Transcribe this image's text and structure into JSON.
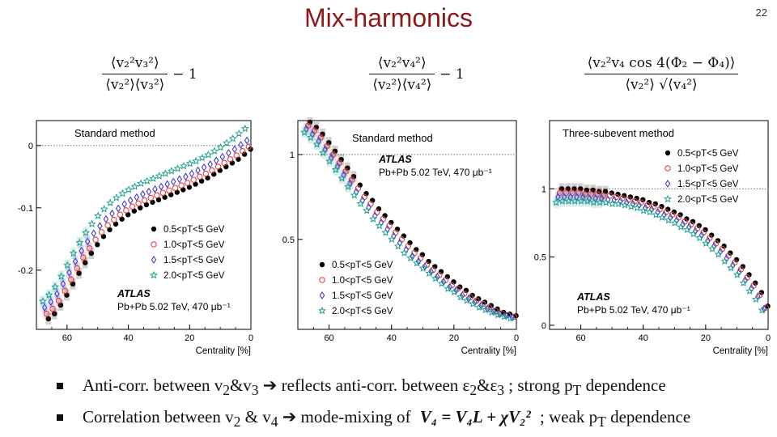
{
  "slide": {
    "title": "Mix-harmonics",
    "page_number": "22"
  },
  "formulas": [
    {
      "numerator": "⟨v₂²v₃²⟩",
      "denominator": "⟨v₂²⟩⟨v₃²⟩",
      "tail": "− 1"
    },
    {
      "numerator": "⟨v₂²v₄²⟩",
      "denominator": "⟨v₂²⟩⟨v₄²⟩",
      "tail": "− 1"
    },
    {
      "numerator": "⟨v₂²v₄ cos 4(Φ₂ − Φ₄)⟩",
      "denominator": "⟨v₂²⟩ √⟨v₄²⟩",
      "tail": ""
    }
  ],
  "bullets": [
    {
      "a": "Anti-corr. between v",
      "s1": "2",
      "b": "&v",
      "s2": "3",
      "c": " ➔ reflects anti-corr. between ε",
      "s3": "2",
      "d": "&ε",
      "s4": "3",
      "e": "  ; strong p",
      "s5": "T",
      "f": " dependence"
    },
    {
      "a": "Correlation between v",
      "s1": "2",
      "b": " & v",
      "s2": "4",
      "c": " ➔ mode-mixing of ",
      "eq": "V₄ = V₄L + χV₂²",
      "e": " ; weak p",
      "s5": "T",
      "f": " dependence"
    }
  ],
  "chart_data": [
    {
      "type": "scatter",
      "method": "Standard method",
      "experiment": "ATLAS",
      "dataset": "Pb+Pb 5.02 TeV, 470 μb⁻¹",
      "xlabel": "Centrality [%]",
      "ylabel": "",
      "xlim": [
        70,
        0
      ],
      "ylim": [
        -0.295,
        0.04
      ],
      "xticks": [
        60,
        40,
        20,
        0
      ],
      "yticks": [
        0,
        -0.1,
        -0.2
      ],
      "yticklabels": [
        "0",
        "-0.1",
        "-0.2"
      ],
      "reference_line": 0,
      "legend_position": "middle-right",
      "x": [
        67,
        65,
        63,
        61,
        59,
        57,
        55,
        53,
        51,
        49,
        47,
        45,
        43,
        41,
        39,
        37,
        35,
        33,
        31,
        29,
        27,
        25,
        23,
        21,
        19,
        17,
        15,
        13,
        11,
        9,
        7,
        5,
        3,
        1
      ],
      "series": [
        {
          "name": "0.5<pT<5 GeV",
          "color": "#000000",
          "marker": "filled-circle",
          "values": [
            -0.278,
            -0.27,
            -0.256,
            -0.24,
            -0.222,
            -0.205,
            -0.188,
            -0.173,
            -0.159,
            -0.146,
            -0.135,
            -0.126,
            -0.118,
            -0.111,
            -0.105,
            -0.1,
            -0.095,
            -0.091,
            -0.087,
            -0.083,
            -0.079,
            -0.075,
            -0.071,
            -0.067,
            -0.062,
            -0.057,
            -0.052,
            -0.046,
            -0.04,
            -0.034,
            -0.028,
            -0.022,
            -0.014,
            -0.006
          ]
        },
        {
          "name": "1.0<pT<5 GeV",
          "color": "#e04040",
          "marker": "open-circle",
          "values": [
            -0.27,
            -0.262,
            -0.249,
            -0.233,
            -0.215,
            -0.197,
            -0.18,
            -0.165,
            -0.151,
            -0.139,
            -0.128,
            -0.119,
            -0.111,
            -0.104,
            -0.098,
            -0.093,
            -0.088,
            -0.084,
            -0.08,
            -0.076,
            -0.072,
            -0.068,
            -0.064,
            -0.06,
            -0.055,
            -0.05,
            -0.045,
            -0.04,
            -0.034,
            -0.028,
            -0.022,
            -0.016,
            -0.009,
            -0.002
          ]
        },
        {
          "name": "1.5<pT<5 GeV",
          "color": "#4040d0",
          "marker": "open-diamond",
          "values": [
            -0.26,
            -0.251,
            -0.238,
            -0.222,
            -0.204,
            -0.186,
            -0.169,
            -0.154,
            -0.141,
            -0.129,
            -0.118,
            -0.109,
            -0.101,
            -0.094,
            -0.088,
            -0.083,
            -0.078,
            -0.074,
            -0.07,
            -0.066,
            -0.062,
            -0.058,
            -0.054,
            -0.05,
            -0.045,
            -0.04,
            -0.035,
            -0.03,
            -0.024,
            -0.018,
            -0.012,
            -0.006,
            0.001,
            0.008
          ]
        },
        {
          "name": "2.0<pT<5 GeV",
          "color": "#20a090",
          "marker": "open-star",
          "values": [
            -0.25,
            -0.24,
            -0.227,
            -0.21,
            -0.192,
            -0.173,
            -0.156,
            -0.14,
            -0.126,
            -0.113,
            -0.102,
            -0.092,
            -0.084,
            -0.077,
            -0.071,
            -0.066,
            -0.061,
            -0.057,
            -0.053,
            -0.049,
            -0.045,
            -0.041,
            -0.037,
            -0.033,
            -0.029,
            -0.025,
            -0.02,
            -0.015,
            -0.009,
            -0.003,
            0.004,
            0.011,
            0.019,
            0.027
          ]
        }
      ]
    },
    {
      "type": "scatter",
      "method": "Standard method",
      "experiment": "ATLAS",
      "dataset": "Pb+Pb 5.02 TeV, 470 μb⁻¹",
      "xlabel": "Centrality [%]",
      "ylabel": "",
      "xlim": [
        70,
        0
      ],
      "ylim": [
        -0.03,
        1.2
      ],
      "xticks": [
        60,
        40,
        20,
        0
      ],
      "yticks": [
        1,
        0.5
      ],
      "yticklabels": [
        "1",
        "0.5"
      ],
      "reference_line": 1,
      "legend_position": "bottom-left",
      "x": [
        67,
        65,
        63,
        61,
        59,
        57,
        55,
        53,
        51,
        49,
        47,
        45,
        43,
        41,
        39,
        37,
        35,
        33,
        31,
        29,
        27,
        25,
        23,
        21,
        19,
        17,
        15,
        13,
        11,
        9,
        7,
        5,
        3,
        1
      ],
      "series": [
        {
          "name": "0.5<pT<5 GeV",
          "color": "#000000",
          "marker": "filled-circle",
          "values": [
            1.19,
            1.16,
            1.12,
            1.07,
            1.02,
            0.97,
            0.92,
            0.87,
            0.82,
            0.77,
            0.73,
            0.68,
            0.64,
            0.6,
            0.56,
            0.52,
            0.48,
            0.44,
            0.41,
            0.37,
            0.34,
            0.31,
            0.28,
            0.25,
            0.22,
            0.2,
            0.17,
            0.15,
            0.13,
            0.11,
            0.09,
            0.07,
            0.06,
            0.05
          ]
        },
        {
          "name": "1.0<pT<5 GeV",
          "color": "#e04040",
          "marker": "open-circle",
          "values": [
            1.17,
            1.14,
            1.1,
            1.05,
            1.0,
            0.95,
            0.9,
            0.85,
            0.8,
            0.75,
            0.71,
            0.66,
            0.62,
            0.58,
            0.54,
            0.5,
            0.46,
            0.42,
            0.39,
            0.35,
            0.32,
            0.29,
            0.26,
            0.23,
            0.21,
            0.18,
            0.16,
            0.14,
            0.12,
            0.1,
            0.08,
            0.065,
            0.055,
            0.045
          ]
        },
        {
          "name": "1.5<pT<5 GeV",
          "color": "#4040d0",
          "marker": "open-diamond",
          "values": [
            1.15,
            1.12,
            1.08,
            1.03,
            0.98,
            0.93,
            0.88,
            0.83,
            0.78,
            0.73,
            0.69,
            0.64,
            0.6,
            0.56,
            0.52,
            0.48,
            0.44,
            0.4,
            0.37,
            0.34,
            0.31,
            0.28,
            0.25,
            0.22,
            0.2,
            0.17,
            0.15,
            0.13,
            0.11,
            0.09,
            0.075,
            0.06,
            0.05,
            0.04
          ]
        },
        {
          "name": "2.0<pT<5 GeV",
          "color": "#20a090",
          "marker": "open-star",
          "values": [
            1.13,
            1.1,
            1.06,
            1.01,
            0.96,
            0.91,
            0.86,
            0.81,
            0.76,
            0.71,
            0.67,
            0.62,
            0.58,
            0.54,
            0.5,
            0.46,
            0.42,
            0.39,
            0.36,
            0.33,
            0.3,
            0.27,
            0.24,
            0.21,
            0.19,
            0.16,
            0.14,
            0.12,
            0.1,
            0.085,
            0.07,
            0.055,
            0.045,
            0.035
          ]
        }
      ]
    },
    {
      "type": "scatter",
      "method": "Three-subevent method",
      "experiment": "ATLAS",
      "dataset": "Pb+Pb 5.02 TeV, 470 μb⁻¹",
      "xlabel": "Centrality [%]",
      "ylabel": "",
      "xlim": [
        70,
        0
      ],
      "ylim": [
        -0.03,
        1.5
      ],
      "xticks": [
        60,
        40,
        20,
        0
      ],
      "yticks": [
        1,
        0.5,
        0
      ],
      "yticklabels": [
        "1",
        "0.5",
        "0"
      ],
      "reference_line": 1,
      "legend_position": "top-right",
      "x": [
        67,
        65,
        63,
        61,
        59,
        57,
        55,
        53,
        51,
        49,
        47,
        45,
        43,
        41,
        39,
        37,
        35,
        33,
        31,
        29,
        27,
        25,
        23,
        21,
        19,
        17,
        15,
        13,
        11,
        9,
        7,
        5,
        3,
        1
      ],
      "series": [
        {
          "name": "0.5<pT<5 GeV",
          "color": "#000000",
          "marker": "filled-circle",
          "values": [
            1.0,
            1.0,
            1.0,
            1.0,
            0.99,
            0.99,
            0.98,
            0.98,
            0.97,
            0.96,
            0.95,
            0.94,
            0.93,
            0.92,
            0.9,
            0.89,
            0.87,
            0.85,
            0.83,
            0.81,
            0.78,
            0.76,
            0.73,
            0.7,
            0.66,
            0.62,
            0.58,
            0.53,
            0.48,
            0.43,
            0.37,
            0.31,
            0.24,
            0.14
          ]
        },
        {
          "name": "1.0<pT<5 GeV",
          "color": "#e04040",
          "marker": "open-circle",
          "values": [
            0.97,
            0.97,
            0.97,
            0.97,
            0.96,
            0.96,
            0.96,
            0.95,
            0.95,
            0.94,
            0.93,
            0.92,
            0.91,
            0.9,
            0.88,
            0.87,
            0.85,
            0.83,
            0.81,
            0.79,
            0.76,
            0.74,
            0.71,
            0.68,
            0.64,
            0.6,
            0.56,
            0.51,
            0.46,
            0.41,
            0.35,
            0.29,
            0.22,
            0.13
          ]
        },
        {
          "name": "1.5<pT<5 GeV",
          "color": "#4040d0",
          "marker": "open-diamond",
          "values": [
            0.94,
            0.94,
            0.94,
            0.94,
            0.94,
            0.93,
            0.93,
            0.93,
            0.92,
            0.92,
            0.91,
            0.9,
            0.89,
            0.88,
            0.86,
            0.85,
            0.83,
            0.81,
            0.79,
            0.77,
            0.74,
            0.72,
            0.69,
            0.66,
            0.62,
            0.58,
            0.54,
            0.49,
            0.44,
            0.39,
            0.33,
            0.27,
            0.21,
            0.12
          ]
        },
        {
          "name": "2.0<pT<5 GeV",
          "color": "#20a090",
          "marker": "open-star",
          "values": [
            0.9,
            0.91,
            0.91,
            0.91,
            0.91,
            0.91,
            0.9,
            0.9,
            0.9,
            0.89,
            0.89,
            0.88,
            0.87,
            0.86,
            0.84,
            0.83,
            0.81,
            0.79,
            0.77,
            0.75,
            0.72,
            0.7,
            0.67,
            0.64,
            0.6,
            0.56,
            0.52,
            0.47,
            0.42,
            0.37,
            0.31,
            0.25,
            0.19,
            0.11
          ]
        }
      ]
    }
  ]
}
